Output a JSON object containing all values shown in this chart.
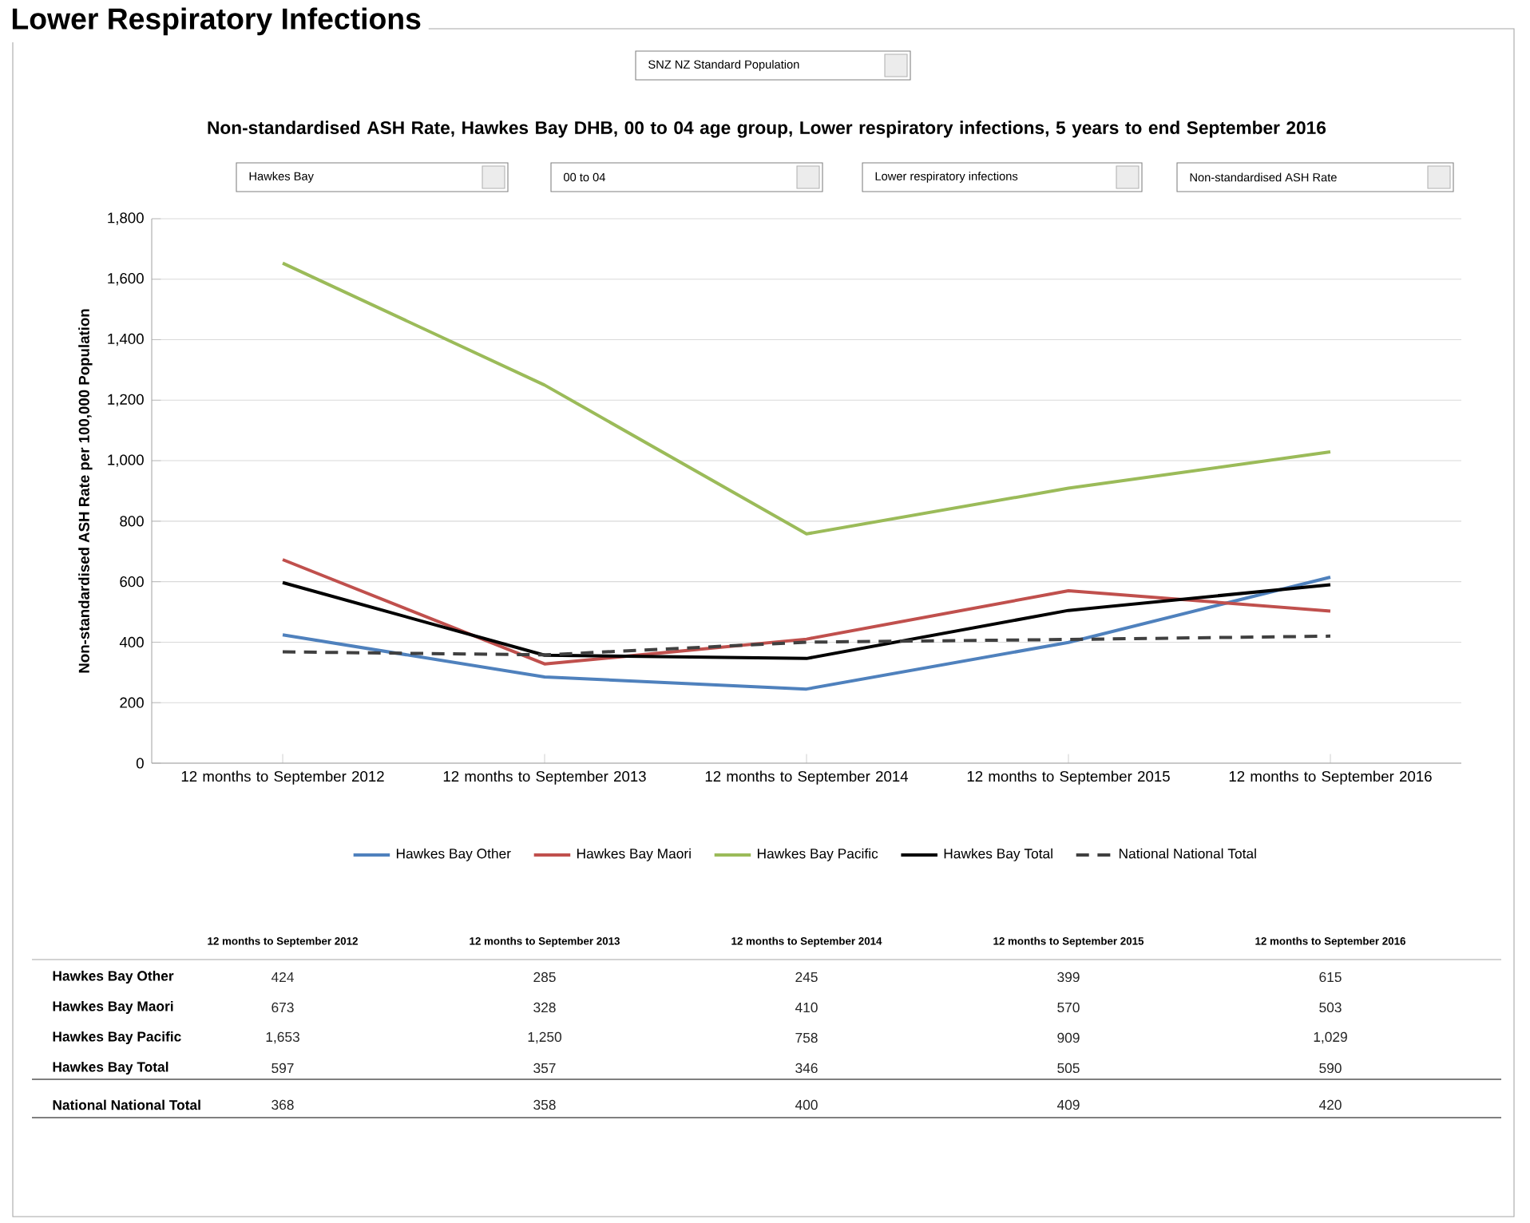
{
  "chart_data": {
    "type": "line",
    "title": "Lower Respiratory Infections",
    "subtitle": "Non-standardised ASH Rate, Hawkes Bay DHB, 00 to 04 age group, Lower respiratory infections, 5 years to end September 2016",
    "ylabel": "Non-standardised ASH Rate per 100,000 Population",
    "annotations": [
      "SNZ NZ Standard Population",
      "Hawkes Bay",
      "00 to 04",
      "Lower respiratory infections",
      "Non-standardised ASH Rate"
    ],
    "categories": [
      "12 months to September 2012",
      "12 months to September 2013",
      "12 months to September 2014",
      "12 months to September 2015",
      "12 months to September 2016"
    ],
    "series": [
      {
        "name": "Hawkes Bay  Other",
        "color": "#4f81bd",
        "values": [
          424,
          285,
          245,
          399,
          615
        ],
        "value_labels": [
          "424",
          "285",
          "245",
          "399",
          "615"
        ]
      },
      {
        "name": "Hawkes Bay  Maori",
        "color": "#c0504d",
        "values": [
          673,
          328,
          410,
          570,
          503
        ],
        "value_labels": [
          "673",
          "328",
          "410",
          "570",
          "503"
        ]
      },
      {
        "name": "Hawkes Bay  Pacific",
        "color": "#9bbb59",
        "values": [
          1653,
          1250,
          758,
          909,
          1029
        ],
        "value_labels": [
          "1,653",
          "1,250",
          "758",
          "909",
          "1,029"
        ]
      },
      {
        "name": "Hawkes Bay  Total",
        "color": "#000000",
        "values": [
          597,
          357,
          346,
          505,
          590
        ],
        "value_labels": [
          "597",
          "357",
          "346",
          "505",
          "590"
        ]
      },
      {
        "name": "National  National Total",
        "color": "#404040",
        "line_style": "dashed",
        "values": [
          368,
          358,
          400,
          409,
          420
        ],
        "value_labels": [
          "368",
          "358",
          "400",
          "409",
          "420"
        ]
      }
    ],
    "ylim": [
      0,
      1800
    ],
    "yticks": [
      0,
      {
        "value": 200,
        "label": "200"
      },
      {
        "value": 400,
        "label": "400"
      },
      {
        "value": 600,
        "label": "600"
      },
      {
        "value": 800,
        "label": "800"
      },
      {
        "value": 1000,
        "label": "1,000"
      },
      {
        "value": 1200,
        "label": "1,200"
      },
      {
        "value": 1400,
        "label": "1,400"
      },
      {
        "value": 1600,
        "label": "1,600"
      },
      {
        "value": 1800,
        "label": "1,800"
      }
    ],
    "grid": "y",
    "legend": "bottom",
    "marker": "none",
    "line_style": "solid"
  }
}
